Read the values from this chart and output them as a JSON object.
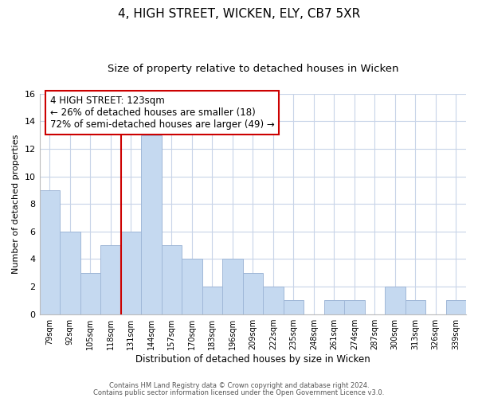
{
  "title": "4, HIGH STREET, WICKEN, ELY, CB7 5XR",
  "subtitle": "Size of property relative to detached houses in Wicken",
  "xlabel": "Distribution of detached houses by size in Wicken",
  "ylabel": "Number of detached properties",
  "footnote1": "Contains HM Land Registry data © Crown copyright and database right 2024.",
  "footnote2": "Contains public sector information licensed under the Open Government Licence v3.0.",
  "bar_labels": [
    "79sqm",
    "92sqm",
    "105sqm",
    "118sqm",
    "131sqm",
    "144sqm",
    "157sqm",
    "170sqm",
    "183sqm",
    "196sqm",
    "209sqm",
    "222sqm",
    "235sqm",
    "248sqm",
    "261sqm",
    "274sqm",
    "287sqm",
    "300sqm",
    "313sqm",
    "326sqm",
    "339sqm"
  ],
  "bar_values": [
    9,
    6,
    3,
    5,
    6,
    13,
    5,
    4,
    2,
    4,
    3,
    2,
    1,
    0,
    1,
    1,
    0,
    2,
    1,
    0,
    1
  ],
  "bar_color": "#c5d9f0",
  "bar_edge_color": "#a0b8d8",
  "vline_index": 3.5,
  "vline_color": "#cc0000",
  "annotation_title": "4 HIGH STREET: 123sqm",
  "annotation_line1": "← 26% of detached houses are smaller (18)",
  "annotation_line2": "72% of semi-detached houses are larger (49) →",
  "annotation_box_color": "#ffffff",
  "annotation_box_edge": "#cc0000",
  "ylim": [
    0,
    16
  ],
  "yticks": [
    0,
    2,
    4,
    6,
    8,
    10,
    12,
    14,
    16
  ],
  "background_color": "#ffffff",
  "grid_color": "#c8d4e8",
  "title_fontsize": 11,
  "subtitle_fontsize": 9.5,
  "ylabel_fontsize": 8,
  "xlabel_fontsize": 8.5
}
